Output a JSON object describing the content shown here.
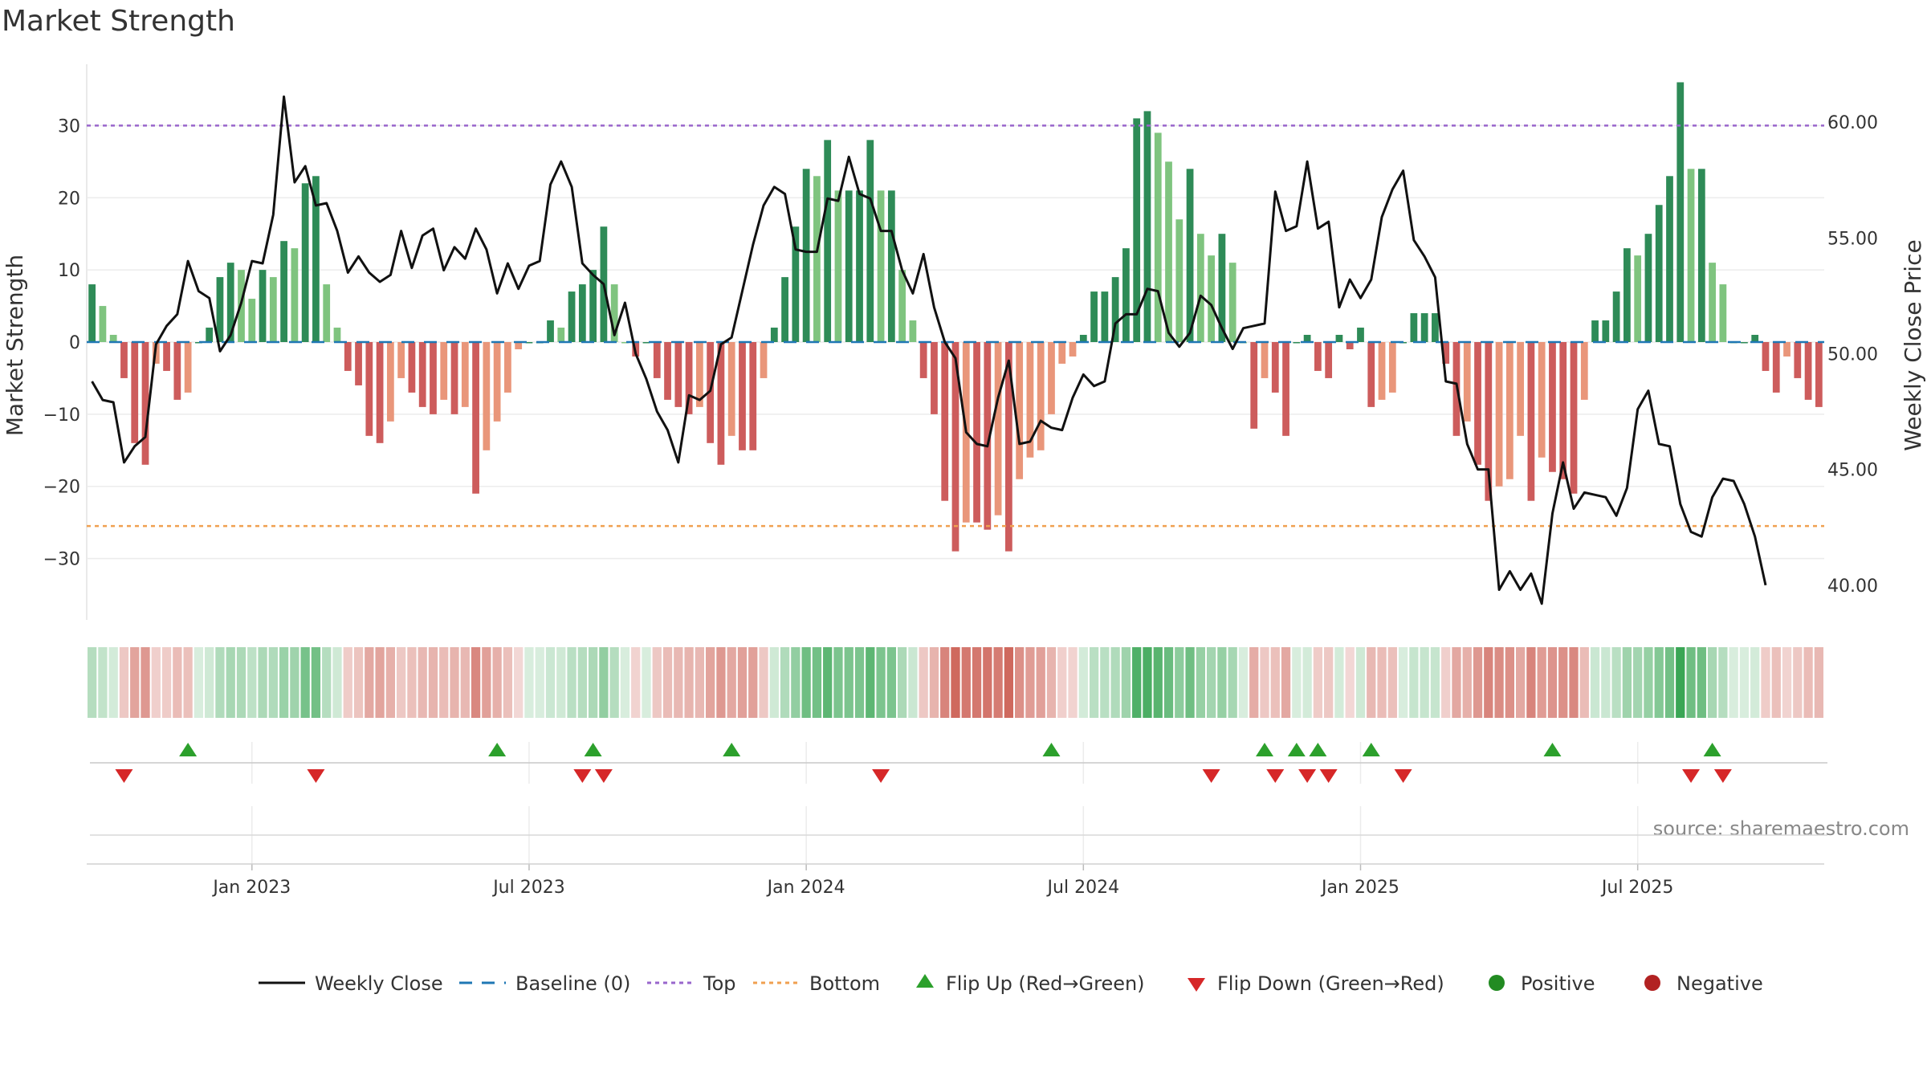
{
  "chart_data": {
    "type": "bar",
    "title": "Market Strength",
    "ylabel_left": "Market Strength",
    "ylabel_right": "Weekly Close Price",
    "source": "source: sharemaestro.com",
    "y_left": {
      "range": [
        -38.5,
        38.5
      ],
      "ticks": [
        30,
        20,
        10,
        0,
        -10,
        -20,
        -30
      ],
      "tick_labels": [
        "30",
        "20",
        "10",
        "0",
        "−10",
        "−20",
        "−30"
      ]
    },
    "y_right": {
      "range": [
        38.5,
        62.5
      ],
      "ticks": [
        60,
        55,
        50,
        45,
        40
      ],
      "tick_labels": [
        "60.00",
        "55.00",
        "50.00",
        "45.00",
        "40.00"
      ]
    },
    "x_ticks": [
      {
        "week": 15,
        "label": "Jan 2023"
      },
      {
        "week": 41,
        "label": "Jul 2023"
      },
      {
        "week": 67,
        "label": "Jan 2024"
      },
      {
        "week": 93,
        "label": "Jul 2024"
      },
      {
        "week": 119,
        "label": "Jan 2025"
      },
      {
        "week": 145,
        "label": "Jul 2025"
      }
    ],
    "top_line": 30,
    "bottom_line": -25.5,
    "baseline": 0,
    "colors": {
      "strong_pos": "#2e8b57",
      "weak_pos": "#7fc47f",
      "strong_neg": "#cd5c5c",
      "weak_neg": "#e9967a",
      "close": "#111111",
      "baseline": "#1f77b4",
      "top": "#9966cc",
      "bottom": "#f0a050",
      "flip_up": "#2ca02c",
      "flip_down": "#d62728",
      "positive_dot": "#228b22",
      "negative_dot": "#b22222"
    },
    "strength": [
      8,
      5,
      1,
      -5,
      -14,
      -17,
      -3,
      -4,
      -8,
      -7,
      0,
      2,
      9,
      11,
      10,
      6,
      10,
      9,
      14,
      13,
      22,
      23,
      8,
      2,
      -4,
      -6,
      -13,
      -14,
      -11,
      -5,
      -7,
      -9,
      -10,
      -8,
      -10,
      -9,
      -21,
      -15,
      -11,
      -7,
      -1,
      0,
      0,
      3,
      2,
      7,
      8,
      10,
      16,
      8,
      0,
      -2,
      0,
      -5,
      -8,
      -9,
      -10,
      -9,
      -14,
      -17,
      -13,
      -15,
      -15,
      -5,
      2,
      9,
      16,
      24,
      23,
      28,
      21,
      21,
      21,
      28,
      21,
      21,
      10,
      3,
      -5,
      -10,
      -22,
      -29,
      -25,
      -25,
      -26,
      -24,
      -29,
      -19,
      -16,
      -15,
      -10,
      -3,
      -2,
      1,
      7,
      7,
      9,
      13,
      31,
      32,
      29,
      25,
      17,
      24,
      15,
      12,
      15,
      11,
      0,
      -12,
      -5,
      -7,
      -13,
      0,
      1,
      -4,
      -5,
      1,
      -1,
      2,
      -9,
      -8,
      -7,
      0,
      4,
      4,
      4,
      -3,
      -13,
      -11,
      -17,
      -22,
      -20,
      -19,
      -13,
      -22,
      -16,
      -18,
      -19,
      -21,
      -8,
      3,
      3,
      7,
      13,
      12,
      15,
      19,
      23,
      36,
      24,
      24,
      11,
      8,
      0,
      0,
      1,
      -4,
      -7,
      -2,
      -5,
      -8,
      -9
    ],
    "close": [
      48.8,
      48.0,
      47.9,
      45.3,
      46.0,
      46.4,
      50.4,
      51.2,
      51.7,
      54.0,
      52.7,
      52.4,
      50.1,
      50.8,
      52.2,
      54.0,
      53.9,
      56.0,
      61.1,
      57.4,
      58.1,
      56.4,
      56.5,
      55.3,
      53.5,
      54.2,
      53.5,
      53.1,
      53.4,
      55.3,
      53.7,
      55.1,
      55.4,
      53.6,
      54.6,
      54.1,
      55.4,
      54.5,
      52.6,
      53.9,
      52.8,
      53.8,
      54.0,
      57.3,
      58.3,
      57.2,
      53.9,
      53.4,
      53.0,
      50.8,
      52.2,
      50.0,
      48.9,
      47.5,
      46.7,
      45.3,
      48.2,
      48.0,
      48.4,
      50.4,
      50.7,
      52.7,
      54.7,
      56.4,
      57.2,
      56.9,
      54.5,
      54.4,
      54.4,
      56.7,
      56.6,
      58.5,
      56.9,
      56.7,
      55.3,
      55.3,
      53.6,
      52.6,
      54.3,
      52.0,
      50.5,
      49.8,
      46.6,
      46.1,
      46.0,
      48.1,
      49.7,
      46.1,
      46.2,
      47.1,
      46.8,
      46.7,
      48.1,
      49.1,
      48.6,
      48.8,
      51.3,
      51.7,
      51.7,
      52.8,
      52.7,
      50.9,
      50.3,
      50.9,
      52.5,
      52.1,
      51.1,
      50.2,
      51.1,
      51.2,
      51.3,
      57.0,
      55.3,
      55.5,
      58.3,
      55.4,
      55.7,
      52.0,
      53.2,
      52.4,
      53.2,
      55.9,
      57.1,
      57.9,
      54.9,
      54.2,
      53.3,
      48.8,
      48.7,
      46.1,
      45.0,
      45.0,
      39.8,
      40.6,
      39.8,
      40.5,
      39.2,
      43.1,
      45.3,
      43.3,
      44.0,
      43.9,
      43.8,
      43.0,
      44.2,
      47.6,
      48.4,
      46.1,
      46.0,
      43.5,
      42.3,
      42.1,
      43.8,
      44.6,
      44.5,
      43.5,
      42.1,
      40.0
    ],
    "flip_up_weeks": [
      9,
      38,
      47,
      60,
      90,
      110,
      113,
      115,
      120,
      137,
      152
    ],
    "flip_down_weeks": [
      3,
      21,
      46,
      48,
      74,
      105,
      111,
      114,
      116,
      123,
      150,
      153
    ],
    "legend": [
      {
        "key": "close",
        "label": "Weekly Close"
      },
      {
        "key": "baseline",
        "label": "Baseline (0)"
      },
      {
        "key": "top",
        "label": "Top"
      },
      {
        "key": "bottom",
        "label": "Bottom"
      },
      {
        "key": "flip_up",
        "label": "Flip Up (Red→Green)"
      },
      {
        "key": "flip_down",
        "label": "Flip Down (Green→Red)"
      },
      {
        "key": "positive",
        "label": "Positive"
      },
      {
        "key": "negative",
        "label": "Negative"
      }
    ]
  }
}
